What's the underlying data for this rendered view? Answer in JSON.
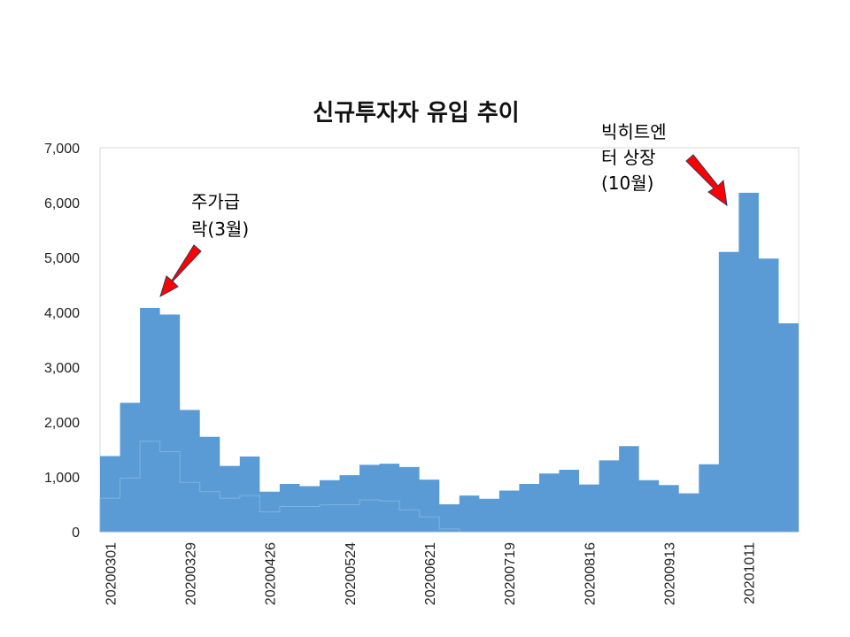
{
  "chart_data": {
    "type": "area",
    "title": "신규투자자 유입 추이",
    "xlabel": "",
    "ylabel": "",
    "ylim": [
      0,
      7000
    ],
    "yticks": [
      0,
      1000,
      2000,
      3000,
      4000,
      5000,
      6000,
      7000
    ],
    "ytick_labels": [
      "0",
      "1,000",
      "2,000",
      "3,000",
      "4,000",
      "5,000",
      "6,000",
      "7,000"
    ],
    "grid": false,
    "legend": "none",
    "x_tick_labels": [
      "20200301",
      "20200329",
      "20200426",
      "20200524",
      "20200621",
      "20200719",
      "20200816",
      "20200913",
      "20201011"
    ],
    "x_tick_every": 4,
    "series": [
      {
        "color": "#5b9bd5",
        "values": [
          1380,
          2350,
          4080,
          3960,
          2220,
          1730,
          1200,
          1370,
          730,
          870,
          830,
          940,
          1030,
          1220,
          1240,
          1180,
          950,
          500,
          660,
          600,
          750,
          870,
          1060,
          1130,
          860,
          1300,
          1560,
          940,
          850,
          700,
          1230,
          5100,
          6180,
          4980,
          3800
        ]
      },
      {
        "color": "#5b9bd5",
        "values": [
          610,
          980,
          1650,
          1460,
          900,
          730,
          610,
          660,
          360,
          460,
          460,
          490,
          490,
          580,
          560,
          400,
          270,
          50,
          0,
          0,
          0,
          0,
          0,
          0,
          0,
          0,
          0,
          0,
          0,
          0,
          0,
          0,
          0,
          0,
          0
        ]
      }
    ],
    "annotations": [
      {
        "lines": [
          "주가급",
          "락(3월)"
        ],
        "color": "#ff0000"
      },
      {
        "lines": [
          "빅히트엔",
          "터 상장",
          "(10월)"
        ],
        "color": "#ff0000"
      }
    ]
  }
}
